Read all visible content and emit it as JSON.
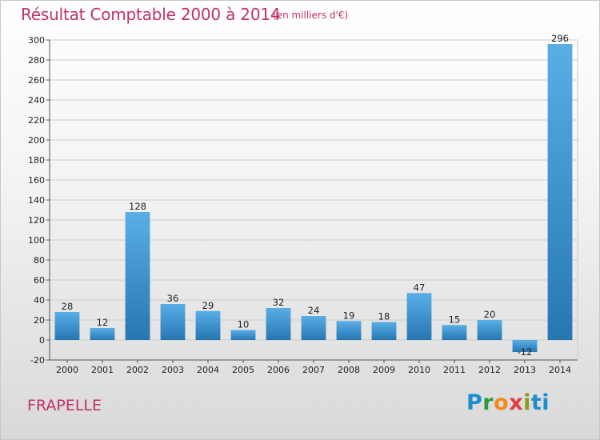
{
  "header": {
    "title": "Résultat Comptable 2000 à 2014",
    "subtitle": "(en milliers d'€)"
  },
  "footer": {
    "commune": "FRAPELLE",
    "logo_text": "Proxiti"
  },
  "colors": {
    "title": "#c2306b",
    "bar_light": "#5aaee6",
    "bar_dark": "#2676b2",
    "grid": "#cccccc"
  },
  "chart_data": {
    "type": "bar",
    "title": "Résultat Comptable 2000 à 2014",
    "subtitle": "(en milliers d'€)",
    "xlabel": "",
    "ylabel": "",
    "categories": [
      "2000",
      "2001",
      "2002",
      "2003",
      "2004",
      "2005",
      "2006",
      "2007",
      "2008",
      "2009",
      "2010",
      "2011",
      "2012",
      "2013",
      "2014"
    ],
    "values": [
      28,
      12,
      128,
      36,
      29,
      10,
      32,
      24,
      19,
      18,
      47,
      15,
      20,
      -12,
      296
    ],
    "ylim": [
      -20,
      300
    ],
    "yticks": [
      -20,
      0,
      20,
      40,
      60,
      80,
      100,
      120,
      140,
      160,
      180,
      200,
      220,
      240,
      260,
      280,
      300
    ],
    "grid": true,
    "legend": "none"
  }
}
